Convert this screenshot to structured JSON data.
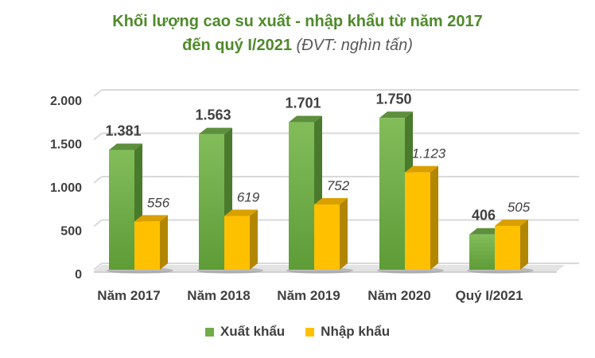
{
  "chart_data": {
    "type": "bar",
    "title_line1": "Khối lượng cao su xuất - nhập khẩu từ năm 2017",
    "title_line2": "đến quý I/2021",
    "unit": "(ĐVT: nghìn tấn)",
    "categories": [
      "Năm 2017",
      "Năm 2018",
      "Năm 2019",
      "Năm 2020",
      "Quý I/2021"
    ],
    "series": [
      {
        "name": "Xuất khẩu",
        "color": "#70ad47",
        "values": [
          1381,
          1563,
          1701,
          1750,
          406
        ],
        "labels": [
          "1.381",
          "1.563",
          "1.701",
          "1.750",
          "406"
        ]
      },
      {
        "name": "Nhập khẩu",
        "color": "#ffc000",
        "values": [
          556,
          619,
          752,
          1123,
          505
        ],
        "labels": [
          "556",
          "619",
          "752",
          "1.123",
          "505"
        ]
      }
    ],
    "yticks": [
      0,
      500,
      1000,
      1500,
      2000
    ],
    "ytick_labels": [
      "0",
      "500",
      "1.000",
      "1.500",
      "2.000"
    ],
    "ylim": [
      0,
      2000
    ],
    "grid": true,
    "legend": "bottom"
  }
}
